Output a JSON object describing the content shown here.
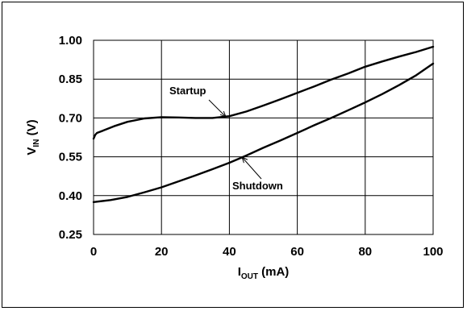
{
  "chart_data": {
    "type": "line",
    "title": "",
    "xlabel": {
      "main": "I",
      "sub": "OUT",
      "suffix": " (mA)"
    },
    "ylabel": {
      "main": "V",
      "sub": "IN",
      "suffix": " (V)"
    },
    "xlim": [
      0,
      100
    ],
    "ylim": [
      0.25,
      1.0
    ],
    "xticks": [
      0,
      20,
      40,
      60,
      80,
      100
    ],
    "yticks": [
      0.25,
      0.4,
      0.55,
      0.7,
      0.85,
      1.0
    ],
    "xtick_labels": [
      "0",
      "20",
      "40",
      "60",
      "80",
      "100"
    ],
    "ytick_labels": [
      "0.25",
      "0.40",
      "0.55",
      "0.70",
      "0.85",
      "1.00"
    ],
    "grid": true,
    "series": [
      {
        "name": "Startup",
        "x": [
          0,
          0.5,
          1,
          3,
          6,
          10,
          15,
          20,
          25,
          30,
          35,
          40,
          45,
          50,
          55,
          60,
          65,
          70,
          75,
          80,
          85,
          90,
          95,
          100
        ],
        "y": [
          0.62,
          0.635,
          0.642,
          0.652,
          0.668,
          0.685,
          0.698,
          0.703,
          0.702,
          0.7,
          0.7,
          0.707,
          0.725,
          0.748,
          0.772,
          0.797,
          0.822,
          0.848,
          0.872,
          0.898,
          0.918,
          0.937,
          0.955,
          0.975
        ]
      },
      {
        "name": "Shutdown",
        "x": [
          0,
          5,
          10,
          15,
          20,
          25,
          30,
          35,
          40,
          45,
          50,
          55,
          60,
          65,
          70,
          75,
          80,
          85,
          90,
          95,
          100
        ],
        "y": [
          0.375,
          0.383,
          0.395,
          0.413,
          0.432,
          0.455,
          0.478,
          0.502,
          0.527,
          0.555,
          0.585,
          0.613,
          0.642,
          0.672,
          0.7,
          0.73,
          0.76,
          0.792,
          0.827,
          0.865,
          0.91
        ]
      }
    ],
    "annotations": [
      {
        "text": "Startup",
        "series": "Startup"
      },
      {
        "text": "Shutdown",
        "series": "Shutdown"
      }
    ]
  }
}
